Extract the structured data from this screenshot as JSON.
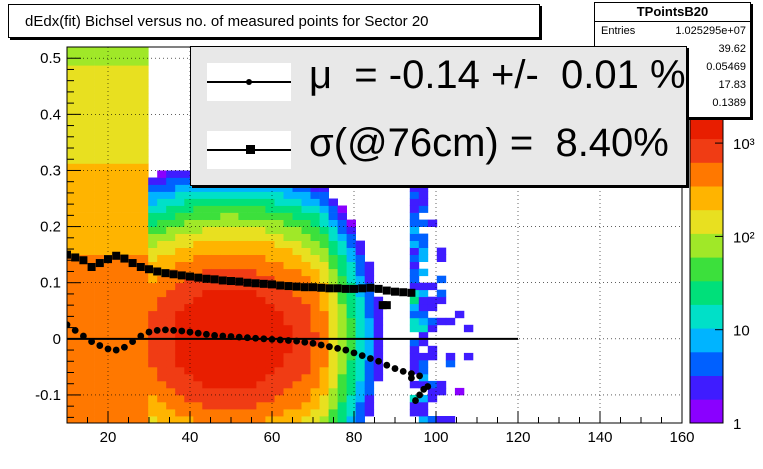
{
  "title": "dEdx(fit) Bichsel versus no. of measured points for Sector 20",
  "stats": {
    "name": "TPointsB20",
    "rows": [
      {
        "label": "Entries",
        "value": "1.025295e+07"
      },
      {
        "label": "",
        "value": "39.62"
      },
      {
        "label": "",
        "value": "0.05469"
      },
      {
        "label": "",
        "value": "17.83"
      },
      {
        "label": "",
        "value": "0.1389"
      }
    ]
  },
  "legend": {
    "mu_text": "μ  = -0.14 +/-  0.01 %",
    "sigma_text": "σ(@76cm) =  8.40%"
  },
  "colors": {
    "palette": [
      "#8a00ff",
      "#3f1cff",
      "#0060ff",
      "#00b4ff",
      "#00e0c8",
      "#00e07a",
      "#3ce03c",
      "#a0e828",
      "#e8e020",
      "#ffb400",
      "#ff7800",
      "#f03c14",
      "#e81e00"
    ]
  },
  "chart_data": {
    "type": "heatmap",
    "xlim": [
      10,
      160
    ],
    "ylim": [
      -0.15,
      0.52
    ],
    "x_ticks": [
      "20",
      "40",
      "60",
      "80",
      "100",
      "120",
      "140",
      "160"
    ],
    "y_ticks": [
      "-0.1",
      "0",
      "0.1",
      "0.2",
      "0.3",
      "0.4",
      "0.5"
    ],
    "z_scale": "log",
    "zlim": [
      1,
      2000
    ],
    "z_ticks": [
      "1",
      "10",
      "10²",
      "10³"
    ],
    "heatmap_peak": {
      "x": 50,
      "y": 0.0
    },
    "grid": true,
    "reference_line": {
      "y": 0,
      "x_range": [
        10,
        120
      ]
    },
    "series": [
      {
        "marker": "square",
        "points": [
          [
            10,
            0.15
          ],
          [
            12,
            0.145
          ],
          [
            14,
            0.14
          ],
          [
            16,
            0.128
          ],
          [
            18,
            0.135
          ],
          [
            20,
            0.142
          ],
          [
            22,
            0.148
          ],
          [
            24,
            0.143
          ],
          [
            26,
            0.135
          ],
          [
            28,
            0.128
          ],
          [
            30,
            0.124
          ],
          [
            32,
            0.12
          ],
          [
            34,
            0.117
          ],
          [
            36,
            0.115
          ],
          [
            38,
            0.113
          ],
          [
            40,
            0.111
          ],
          [
            42,
            0.109
          ],
          [
            44,
            0.107
          ],
          [
            46,
            0.106
          ],
          [
            48,
            0.104
          ],
          [
            50,
            0.103
          ],
          [
            52,
            0.102
          ],
          [
            54,
            0.1
          ],
          [
            56,
            0.099
          ],
          [
            58,
            0.098
          ],
          [
            60,
            0.097
          ],
          [
            62,
            0.095
          ],
          [
            64,
            0.094
          ],
          [
            66,
            0.093
          ],
          [
            68,
            0.092
          ],
          [
            70,
            0.092
          ],
          [
            72,
            0.091
          ],
          [
            74,
            0.09
          ],
          [
            76,
            0.09
          ],
          [
            78,
            0.089
          ],
          [
            80,
            0.089
          ],
          [
            82,
            0.09
          ],
          [
            84,
            0.091
          ],
          [
            86,
            0.089
          ],
          [
            88,
            0.086
          ],
          [
            90,
            0.084
          ],
          [
            92,
            0.083
          ],
          [
            94,
            0.082
          ],
          [
            87,
            0.06
          ],
          [
            88,
            0.06
          ]
        ]
      },
      {
        "marker": "circle",
        "points": [
          [
            10,
            0.025
          ],
          [
            12,
            0.015
          ],
          [
            14,
            0.005
          ],
          [
            16,
            -0.005
          ],
          [
            18,
            -0.012
          ],
          [
            20,
            -0.018
          ],
          [
            22,
            -0.02
          ],
          [
            24,
            -0.015
          ],
          [
            26,
            -0.005
          ],
          [
            28,
            0.005
          ],
          [
            30,
            0.012
          ],
          [
            32,
            0.015
          ],
          [
            34,
            0.016
          ],
          [
            36,
            0.015
          ],
          [
            38,
            0.014
          ],
          [
            40,
            0.012
          ],
          [
            42,
            0.01
          ],
          [
            44,
            0.008
          ],
          [
            46,
            0.006
          ],
          [
            48,
            0.005
          ],
          [
            50,
            0.004
          ],
          [
            52,
            0.003
          ],
          [
            54,
            0.002
          ],
          [
            56,
            0.001
          ],
          [
            58,
            0.0
          ],
          [
            60,
            -0.001
          ],
          [
            62,
            -0.002
          ],
          [
            64,
            -0.003
          ],
          [
            66,
            -0.004
          ],
          [
            68,
            -0.006
          ],
          [
            70,
            -0.008
          ],
          [
            72,
            -0.011
          ],
          [
            74,
            -0.014
          ],
          [
            76,
            -0.017
          ],
          [
            78,
            -0.02
          ],
          [
            80,
            -0.025
          ],
          [
            82,
            -0.03
          ],
          [
            84,
            -0.035
          ],
          [
            86,
            -0.04
          ],
          [
            88,
            -0.047
          ],
          [
            90,
            -0.053
          ],
          [
            92,
            -0.058
          ],
          [
            94,
            -0.062
          ],
          [
            96,
            -0.066
          ],
          [
            98,
            -0.085
          ],
          [
            94,
            -0.07
          ],
          [
            95,
            -0.11
          ],
          [
            96,
            -0.1
          ],
          [
            97,
            -0.09
          ]
        ]
      }
    ]
  }
}
